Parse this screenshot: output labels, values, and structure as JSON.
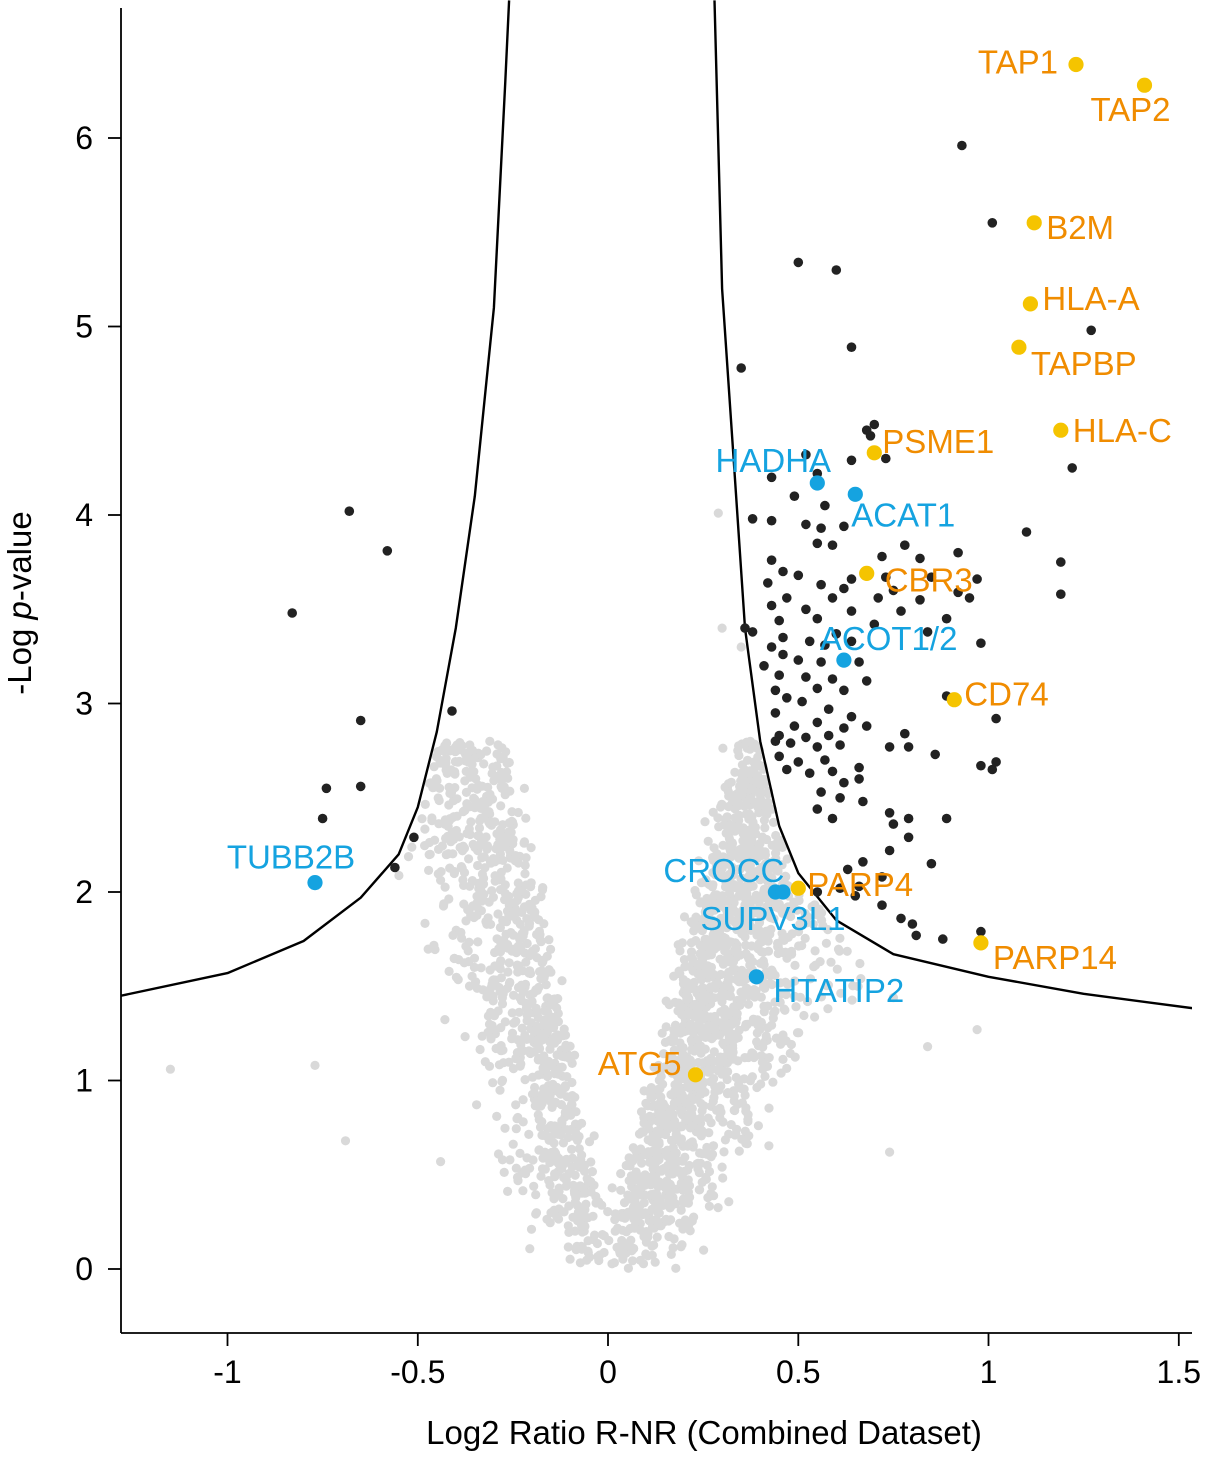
{
  "chart_data": {
    "type": "scatter",
    "title": "",
    "xlabel": "Log2 Ratio R-NR (Combined Dataset)",
    "ylabel_prefix": "-Log ",
    "ylabel_italic": "p",
    "ylabel_suffix": "-value",
    "xlim": [
      -1.28,
      1.55
    ],
    "ylim": [
      -0.33,
      6.73
    ],
    "x_ticks": [
      -1,
      -0.5,
      0,
      0.5,
      1,
      1.5
    ],
    "x_tick_labels": [
      "-1",
      "-0.5",
      "0",
      "0.5",
      "1",
      "1.5"
    ],
    "y_ticks": [
      0,
      1,
      2,
      3,
      4,
      5,
      6
    ],
    "y_tick_labels": [
      "0",
      "1",
      "2",
      "3",
      "4",
      "5",
      "6"
    ],
    "colors": {
      "nonsignificant": "#d9d9d9",
      "significant": "#222222",
      "upregulated": "#f5c400",
      "upregulated_label": "#f08c00",
      "downregulated": "#15a3e0",
      "downregulated_label": "#15a3e0",
      "threshold_curve": "#000000"
    },
    "threshold_curve": {
      "description": "significance cutoff",
      "points": [
        [
          -1.28,
          1.45
        ],
        [
          -1.0,
          1.57
        ],
        [
          -0.8,
          1.74
        ],
        [
          -0.65,
          1.97
        ],
        [
          -0.55,
          2.2
        ],
        [
          -0.5,
          2.45
        ],
        [
          -0.45,
          2.85
        ],
        [
          -0.4,
          3.4
        ],
        [
          -0.35,
          4.1
        ],
        [
          -0.3,
          5.1
        ],
        [
          -0.27,
          6.3
        ],
        [
          -0.26,
          6.73
        ],
        [
          0.28,
          6.73
        ],
        [
          0.3,
          5.2
        ],
        [
          0.33,
          4.3
        ],
        [
          0.36,
          3.4
        ],
        [
          0.4,
          2.8
        ],
        [
          0.45,
          2.35
        ],
        [
          0.5,
          2.1
        ],
        [
          0.6,
          1.85
        ],
        [
          0.75,
          1.67
        ],
        [
          1.0,
          1.55
        ],
        [
          1.25,
          1.46
        ],
        [
          1.55,
          1.38
        ]
      ]
    },
    "nonsignificant_cloud": {
      "series_name": "not significant",
      "approx_points": 2400,
      "x_range": [
        -1.15,
        0.95
      ],
      "y_range": [
        0,
        2.8
      ]
    },
    "significant_points": [
      [
        -0.68,
        4.02
      ],
      [
        -0.58,
        3.81
      ],
      [
        -0.83,
        3.48
      ],
      [
        -0.41,
        2.96
      ],
      [
        -0.65,
        2.91
      ],
      [
        -0.74,
        2.55
      ],
      [
        -0.65,
        2.56
      ],
      [
        -0.75,
        2.39
      ],
      [
        -0.51,
        2.29
      ],
      [
        -0.56,
        2.13
      ],
      [
        0.93,
        5.96
      ],
      [
        1.01,
        5.55
      ],
      [
        0.5,
        5.34
      ],
      [
        0.6,
        5.3
      ],
      [
        1.27,
        4.98
      ],
      [
        0.64,
        4.89
      ],
      [
        0.35,
        4.78
      ],
      [
        0.7,
        4.48
      ],
      [
        0.68,
        4.45
      ],
      [
        0.69,
        4.42
      ],
      [
        0.52,
        4.32
      ],
      [
        0.64,
        4.29
      ],
      [
        0.73,
        4.3
      ],
      [
        1.22,
        4.25
      ],
      [
        0.55,
        4.22
      ],
      [
        0.43,
        4.2
      ],
      [
        0.49,
        4.1
      ],
      [
        0.57,
        4.05
      ],
      [
        0.38,
        3.98
      ],
      [
        0.43,
        3.97
      ],
      [
        0.52,
        3.95
      ],
      [
        0.56,
        3.93
      ],
      [
        0.62,
        3.94
      ],
      [
        1.1,
        3.91
      ],
      [
        0.55,
        3.85
      ],
      [
        0.59,
        3.84
      ],
      [
        0.78,
        3.84
      ],
      [
        0.92,
        3.8
      ],
      [
        0.72,
        3.78
      ],
      [
        0.82,
        3.77
      ],
      [
        0.43,
        3.76
      ],
      [
        1.19,
        3.75
      ],
      [
        0.46,
        3.7
      ],
      [
        0.5,
        3.68
      ],
      [
        0.64,
        3.66
      ],
      [
        0.73,
        3.67
      ],
      [
        0.85,
        3.67
      ],
      [
        0.97,
        3.66
      ],
      [
        0.42,
        3.64
      ],
      [
        0.56,
        3.63
      ],
      [
        0.62,
        3.61
      ],
      [
        0.75,
        3.6
      ],
      [
        0.92,
        3.59
      ],
      [
        1.19,
        3.58
      ],
      [
        0.47,
        3.56
      ],
      [
        0.59,
        3.56
      ],
      [
        0.71,
        3.56
      ],
      [
        0.82,
        3.55
      ],
      [
        0.95,
        3.56
      ],
      [
        0.43,
        3.52
      ],
      [
        0.52,
        3.5
      ],
      [
        0.64,
        3.49
      ],
      [
        0.77,
        3.49
      ],
      [
        0.89,
        3.45
      ],
      [
        0.45,
        3.44
      ],
      [
        0.55,
        3.45
      ],
      [
        0.7,
        3.42
      ],
      [
        0.6,
        3.37
      ],
      [
        0.38,
        3.38
      ],
      [
        0.36,
        3.4
      ],
      [
        0.46,
        3.35
      ],
      [
        0.53,
        3.33
      ],
      [
        0.57,
        3.31
      ],
      [
        0.64,
        3.33
      ],
      [
        0.84,
        3.38
      ],
      [
        0.98,
        3.32
      ],
      [
        0.43,
        3.3
      ],
      [
        0.46,
        3.26
      ],
      [
        0.5,
        3.23
      ],
      [
        0.56,
        3.22
      ],
      [
        0.66,
        3.22
      ],
      [
        0.41,
        3.2
      ],
      [
        0.45,
        3.15
      ],
      [
        0.52,
        3.14
      ],
      [
        0.59,
        3.13
      ],
      [
        0.68,
        3.12
      ],
      [
        0.44,
        3.07
      ],
      [
        0.55,
        3.08
      ],
      [
        0.62,
        3.07
      ],
      [
        0.89,
        3.04
      ],
      [
        0.47,
        3.03
      ],
      [
        0.51,
        3.01
      ],
      [
        0.58,
        2.97
      ],
      [
        0.64,
        2.93
      ],
      [
        0.44,
        2.95
      ],
      [
        1.02,
        2.92
      ],
      [
        0.49,
        2.88
      ],
      [
        0.55,
        2.9
      ],
      [
        0.62,
        2.87
      ],
      [
        0.68,
        2.88
      ],
      [
        0.45,
        2.83
      ],
      [
        0.52,
        2.82
      ],
      [
        0.58,
        2.83
      ],
      [
        0.78,
        2.84
      ],
      [
        0.44,
        2.8
      ],
      [
        0.48,
        2.79
      ],
      [
        0.55,
        2.77
      ],
      [
        0.61,
        2.78
      ],
      [
        0.74,
        2.77
      ],
      [
        0.79,
        2.77
      ],
      [
        0.86,
        2.73
      ],
      [
        0.45,
        2.72
      ],
      [
        0.5,
        2.69
      ],
      [
        0.57,
        2.7
      ],
      [
        0.66,
        2.66
      ],
      [
        0.47,
        2.65
      ],
      [
        0.53,
        2.63
      ],
      [
        0.59,
        2.64
      ],
      [
        0.98,
        2.67
      ],
      [
        1.01,
        2.65
      ],
      [
        1.02,
        2.69
      ],
      [
        0.62,
        2.58
      ],
      [
        0.66,
        2.6
      ],
      [
        0.56,
        2.53
      ],
      [
        0.61,
        2.5
      ],
      [
        0.67,
        2.48
      ],
      [
        0.55,
        2.44
      ],
      [
        0.74,
        2.42
      ],
      [
        0.59,
        2.39
      ],
      [
        0.75,
        2.36
      ],
      [
        0.79,
        2.39
      ],
      [
        0.89,
        2.39
      ],
      [
        0.79,
        2.29
      ],
      [
        0.74,
        2.22
      ],
      [
        0.67,
        2.16
      ],
      [
        0.85,
        2.15
      ],
      [
        0.63,
        2.12
      ],
      [
        0.72,
        2.08
      ],
      [
        0.61,
        2.02
      ],
      [
        0.66,
        2.03
      ],
      [
        0.55,
        2.0
      ],
      [
        0.65,
        1.98
      ],
      [
        0.72,
        1.93
      ],
      [
        0.77,
        1.86
      ],
      [
        0.8,
        1.83
      ],
      [
        0.81,
        1.77
      ],
      [
        0.88,
        1.75
      ],
      [
        0.98,
        1.79
      ]
    ],
    "highlighted": [
      {
        "gene": "TAP1",
        "x": 1.23,
        "y": 6.39,
        "group": "up"
      },
      {
        "gene": "TAP2",
        "x": 1.41,
        "y": 6.28,
        "group": "up"
      },
      {
        "gene": "B2M",
        "x": 1.12,
        "y": 5.55,
        "group": "up"
      },
      {
        "gene": "HLA-A",
        "x": 1.11,
        "y": 5.12,
        "group": "up"
      },
      {
        "gene": "TAPBP",
        "x": 1.08,
        "y": 4.89,
        "group": "up"
      },
      {
        "gene": "HLA-C",
        "x": 1.19,
        "y": 4.45,
        "group": "up"
      },
      {
        "gene": "PSME1",
        "x": 0.7,
        "y": 4.33,
        "group": "up"
      },
      {
        "gene": "CBR3",
        "x": 0.68,
        "y": 3.69,
        "group": "up"
      },
      {
        "gene": "CD74",
        "x": 0.91,
        "y": 3.02,
        "group": "up"
      },
      {
        "gene": "PARP4",
        "x": 0.5,
        "y": 2.02,
        "group": "up"
      },
      {
        "gene": "PARP14",
        "x": 0.98,
        "y": 1.73,
        "group": "up"
      },
      {
        "gene": "ATG5",
        "x": 0.23,
        "y": 1.03,
        "group": "up"
      },
      {
        "gene": "HADHA",
        "x": 0.55,
        "y": 4.17,
        "group": "down"
      },
      {
        "gene": "ACAT1",
        "x": 0.65,
        "y": 4.11,
        "group": "down"
      },
      {
        "gene": "ACOT1/2",
        "x": 0.62,
        "y": 3.23,
        "group": "down"
      },
      {
        "gene": "TUBB2B",
        "x": -0.77,
        "y": 2.05,
        "group": "down"
      },
      {
        "gene": "CROCC",
        "x": 0.44,
        "y": 2.0,
        "group": "down"
      },
      {
        "gene": "SUPV3L1",
        "x": 0.46,
        "y": 2.0,
        "group": "down"
      },
      {
        "gene": "HTATIP2",
        "x": 0.39,
        "y": 1.55,
        "group": "down"
      }
    ]
  }
}
